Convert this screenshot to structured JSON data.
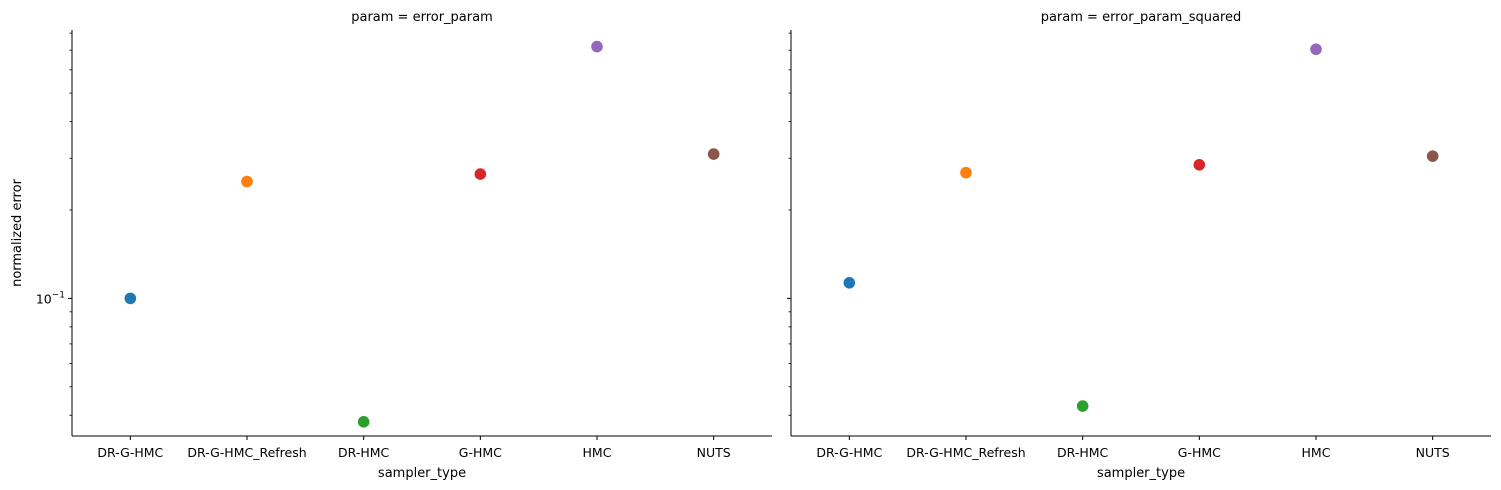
{
  "chart_data": [
    {
      "type": "scatter",
      "title": "param = error_param",
      "xlabel": "sampler_type",
      "ylabel": "normalized error",
      "yscale": "log",
      "categories": [
        "DR-G-HMC",
        "DR-G-HMC_Refresh",
        "DR-HMC",
        "G-HMC",
        "HMC",
        "NUTS"
      ],
      "values": [
        0.1,
        0.25,
        0.038,
        0.265,
        0.72,
        0.31
      ],
      "colors": [
        "#1f77b4",
        "#ff7f0e",
        "#2ca02c",
        "#d62728",
        "#9467bd",
        "#8c564b"
      ],
      "ylim": [
        0.034,
        0.82
      ],
      "yticks_major": [
        {
          "value": 0.1,
          "base": "10",
          "exp": "−1"
        }
      ],
      "yticks_minor": [
        0.04,
        0.05,
        0.06,
        0.07,
        0.08,
        0.09,
        0.2,
        0.3,
        0.4,
        0.5,
        0.6,
        0.7,
        0.8
      ],
      "grid": false,
      "legend": "none"
    },
    {
      "type": "scatter",
      "title": "param = error_param_squared",
      "xlabel": "sampler_type",
      "ylabel": "",
      "yscale": "log",
      "categories": [
        "DR-G-HMC",
        "DR-G-HMC_Refresh",
        "DR-HMC",
        "G-HMC",
        "HMC",
        "NUTS"
      ],
      "values": [
        0.113,
        0.268,
        0.043,
        0.285,
        0.705,
        0.305
      ],
      "colors": [
        "#1f77b4",
        "#ff7f0e",
        "#2ca02c",
        "#d62728",
        "#9467bd",
        "#8c564b"
      ],
      "ylim": [
        0.034,
        0.82
      ],
      "yticks_major": [
        {
          "value": 0.1,
          "base": "",
          "exp": ""
        }
      ],
      "yticks_minor": [
        0.04,
        0.05,
        0.06,
        0.07,
        0.08,
        0.09,
        0.2,
        0.3,
        0.4,
        0.5,
        0.6,
        0.7,
        0.8
      ],
      "grid": false,
      "legend": "none"
    }
  ]
}
